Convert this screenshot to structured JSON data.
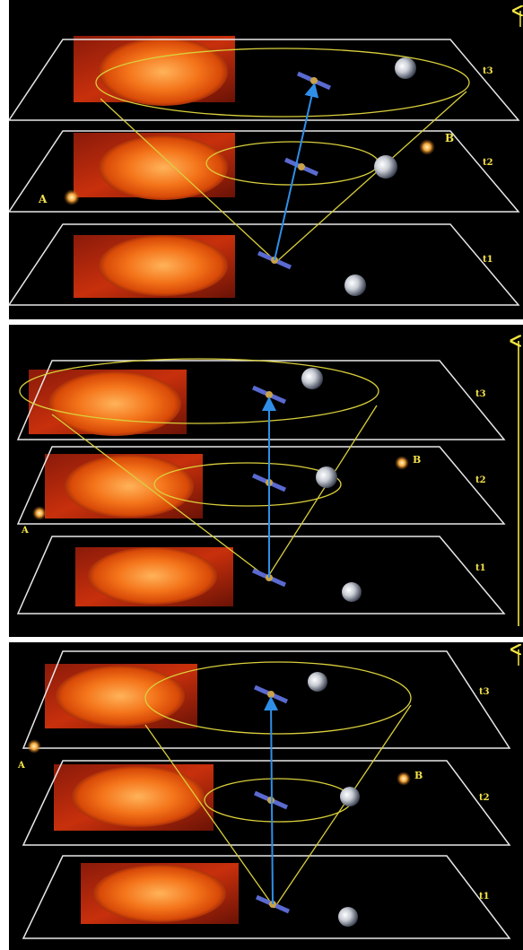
{
  "panels": [
    {
      "planes": [
        {
          "time_label": "t3"
        },
        {
          "time_label": "t2"
        },
        {
          "time_label": "t1"
        }
      ],
      "point_a": "A",
      "point_b": "B"
    },
    {
      "planes": [
        {
          "time_label": "t3"
        },
        {
          "time_label": "t2"
        },
        {
          "time_label": "t1"
        }
      ],
      "point_a": "A",
      "point_b": "B"
    },
    {
      "planes": [
        {
          "time_label": "t3"
        },
        {
          "time_label": "t2"
        },
        {
          "time_label": "t1"
        }
      ],
      "point_a": "A",
      "point_b": "B"
    }
  ],
  "colors": {
    "background": "#000000",
    "plane_outline": "#e8e8e8",
    "cone_lines": "#d9cf3c",
    "time_arrow": "#f2e640",
    "sightline_arrow": "#2f8fe8",
    "sun": "#f06a14",
    "label": "#f4e24a"
  }
}
